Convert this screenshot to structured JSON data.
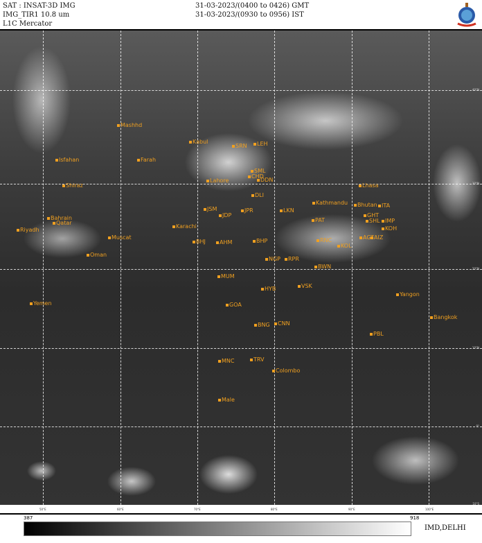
{
  "header": {
    "satellite": "SAT : INSAT-3D IMG",
    "channel": "IMG_TIR1 10.8 um",
    "product": "L1C Mercator",
    "time_gmt": "31-03-2023/(0400 to 0426) GMT",
    "time_ist": "31-03-2023/(0930 to 0956) IST",
    "logo": "imd-emblem-icon"
  },
  "map": {
    "latitudes": [
      "40°N",
      "30°N",
      "20°N",
      "10°N",
      "0°",
      "10°S"
    ],
    "longitudes": [
      "50°E",
      "60°E",
      "70°E",
      "80°E",
      "90°E",
      "100°E"
    ],
    "label_color": "#f0a020",
    "cities": [
      "Mashhd",
      "Isfahan",
      "Farah",
      "Shiraz",
      "Bahrain",
      "Qatar",
      "Riyadh",
      "Muscat",
      "Oman",
      "Yemen",
      "Kabul",
      "SRN",
      "LEH",
      "SML",
      "CHD",
      "DDN",
      "Lahore",
      "DLI",
      "JSM",
      "JDP",
      "JPR",
      "LKN",
      "Karachi",
      "BHJ",
      "AHM",
      "BHP",
      "NGP",
      "RPR",
      "BWN",
      "MUM",
      "HYB",
      "VSK",
      "GOA",
      "BNG",
      "CNN",
      "MNC",
      "TRV",
      "Colombo",
      "Male",
      "Lhasa",
      "Kathmandu",
      "Bhutan",
      "ITA",
      "GHT",
      "SHL",
      "PAT",
      "IMP",
      "AGT",
      "AIZ",
      "KOL",
      "RNC",
      "KOH",
      "Yangon",
      "Bangkok",
      "PBL"
    ]
  },
  "colorbar": {
    "min": "387",
    "max": "918",
    "colors": [
      "#000000",
      "#ffffff"
    ]
  },
  "credit": "IMD,DELHI"
}
